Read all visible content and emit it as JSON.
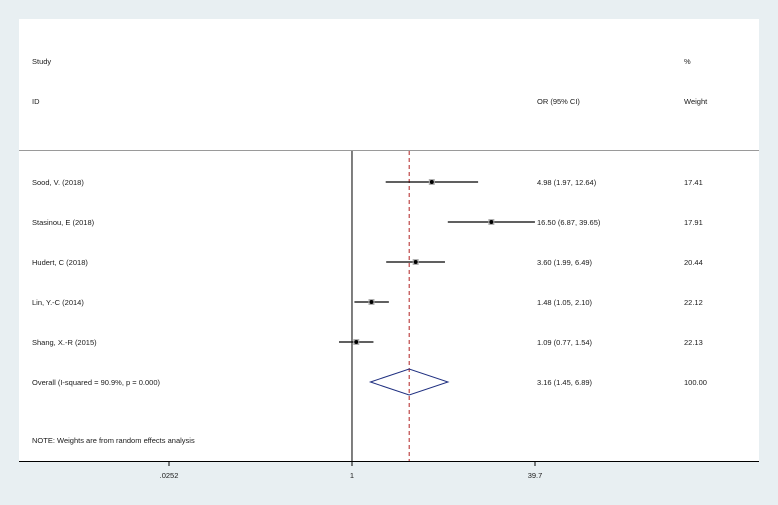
{
  "chart_data": {
    "type": "forest",
    "x_scale": "log",
    "headers": {
      "study_line1": "Study",
      "study_line2": "ID",
      "or_label": "OR (95% CI)",
      "weight_line1": "%",
      "weight_line2": "Weight"
    },
    "studies": [
      {
        "label": "Sood, V. (2018)",
        "or": 4.98,
        "lo": 1.97,
        "hi": 12.64,
        "ci_text": "4.98 (1.97, 12.64)",
        "weight": "17.41"
      },
      {
        "label": "Stasinou, E (2018)",
        "or": 16.5,
        "lo": 6.87,
        "hi": 39.65,
        "ci_text": "16.50 (6.87, 39.65)",
        "weight": "17.91"
      },
      {
        "label": "Hudert, C (2018)",
        "or": 3.6,
        "lo": 1.99,
        "hi": 6.49,
        "ci_text": "3.60 (1.99, 6.49)",
        "weight": "20.44"
      },
      {
        "label": "Lin, Y.-C (2014)",
        "or": 1.48,
        "lo": 1.05,
        "hi": 2.1,
        "ci_text": "1.48 (1.05, 2.10)",
        "weight": "22.12"
      },
      {
        "label": "Shang, X.-R (2015)",
        "or": 1.09,
        "lo": 0.77,
        "hi": 1.54,
        "ci_text": "1.09 (0.77, 1.54)",
        "weight": "22.13"
      }
    ],
    "overall": {
      "label": "Overall  (I-squared = 90.9%, p = 0.000)",
      "or": 3.16,
      "lo": 1.45,
      "hi": 6.89,
      "ci_text": "3.16 (1.45, 6.89)",
      "weight": "100.00"
    },
    "note": "NOTE: Weights are from random effects analysis",
    "x_ticks": [
      {
        "value": 0.0252,
        "label": ".0252"
      },
      {
        "value": 1,
        "label": "1"
      },
      {
        "value": 39.7,
        "label": "39.7"
      }
    ],
    "xlim": [
      0.0252,
      39.7
    ],
    "null_line": 1,
    "colors": {
      "ci": "#000000",
      "overall_line": "#b22222",
      "diamond": "#1f2f80"
    }
  }
}
